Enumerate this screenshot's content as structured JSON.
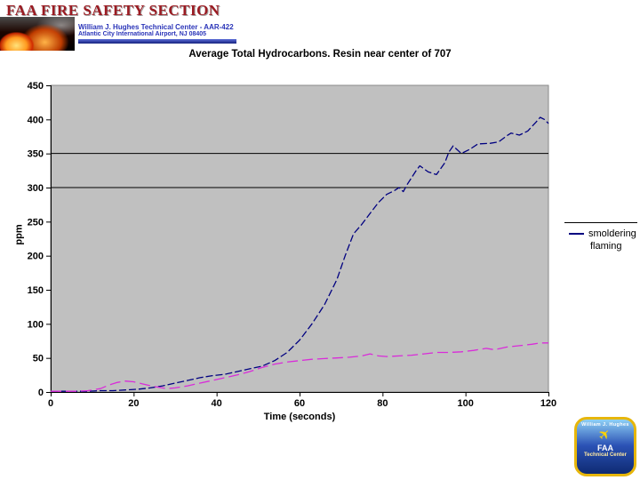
{
  "header": {
    "title": "FAA FIRE SAFETY SECTION",
    "subtitle_line1": "William J. Hughes Technical Center  -  AAR-422",
    "subtitle_line2": "Atlantic City International Airport, NJ 08405"
  },
  "colors": {
    "title_red": "#9b1b22",
    "subtitle_blue": "#2a34b8",
    "plot_bg": "#c0c0c0",
    "plot_border": "#8a8a8a",
    "axis": "#000000",
    "gridline": "#000000",
    "smoldering": "#000080",
    "flaming": "#d92bd9"
  },
  "logo": {
    "arc_text": "William J. Hughes",
    "faa": "FAA",
    "center": "Technical Center",
    "plane_icon": "airplane-icon"
  },
  "chart_data": {
    "type": "line",
    "title": "Average Total Hydrocarbons. Resin near center of 707",
    "xlabel": "Time (seconds)",
    "ylabel": "ppm",
    "xlim": [
      0,
      120
    ],
    "ylim": [
      0,
      450
    ],
    "x_ticks": [
      0,
      20,
      40,
      60,
      80,
      100,
      120
    ],
    "y_ticks": [
      0,
      50,
      100,
      150,
      200,
      250,
      300,
      350,
      400,
      450
    ],
    "gridlines_y": [
      300,
      350
    ],
    "grid": "partial",
    "legend_position": "right-outside",
    "series": [
      {
        "name": "smoldering",
        "color": "#000080",
        "style": "dashed",
        "dash": "8 3",
        "x": [
          0,
          3,
          6,
          9,
          12,
          15,
          18,
          21,
          24,
          27,
          30,
          33,
          36,
          39,
          42,
          45,
          48,
          51,
          54,
          57,
          60,
          63,
          66,
          69,
          71,
          73,
          75,
          77,
          79,
          81,
          83,
          84,
          85,
          86,
          88,
          89,
          91,
          93,
          95,
          96,
          97,
          99,
          101,
          103,
          106,
          108,
          110,
          111,
          113,
          115,
          117,
          118,
          119,
          120
        ],
        "y": [
          1,
          1,
          1,
          1,
          2,
          2,
          3,
          4,
          6,
          9,
          13,
          17,
          21,
          24,
          26,
          30,
          34,
          38,
          46,
          58,
          76,
          100,
          128,
          165,
          200,
          232,
          246,
          262,
          278,
          290,
          296,
          300,
          294,
          305,
          324,
          332,
          323,
          319,
          336,
          352,
          361,
          350,
          356,
          364,
          365,
          367,
          376,
          380,
          377,
          383,
          396,
          403,
          400,
          394
        ]
      },
      {
        "name": "flaming",
        "color": "#d92bd9",
        "style": "dashed",
        "dash": "12 5",
        "x": [
          0,
          3,
          6,
          9,
          12,
          14,
          16,
          18,
          20,
          22,
          25,
          28,
          30,
          33,
          36,
          39,
          42,
          45,
          48,
          51,
          54,
          57,
          60,
          63,
          66,
          69,
          72,
          75,
          77,
          79,
          81,
          84,
          87,
          90,
          93,
          96,
          99,
          102,
          105,
          107,
          110,
          113,
          116,
          118,
          120
        ],
        "y": [
          1,
          1,
          1,
          2,
          5,
          10,
          14,
          16,
          15,
          12,
          8,
          5,
          6,
          9,
          13,
          17,
          21,
          25,
          30,
          36,
          41,
          44,
          46,
          48,
          49,
          50,
          51,
          53,
          56,
          53,
          52,
          53,
          54,
          56,
          58,
          58,
          59,
          61,
          64,
          62,
          66,
          68,
          70,
          72,
          72
        ]
      }
    ]
  }
}
